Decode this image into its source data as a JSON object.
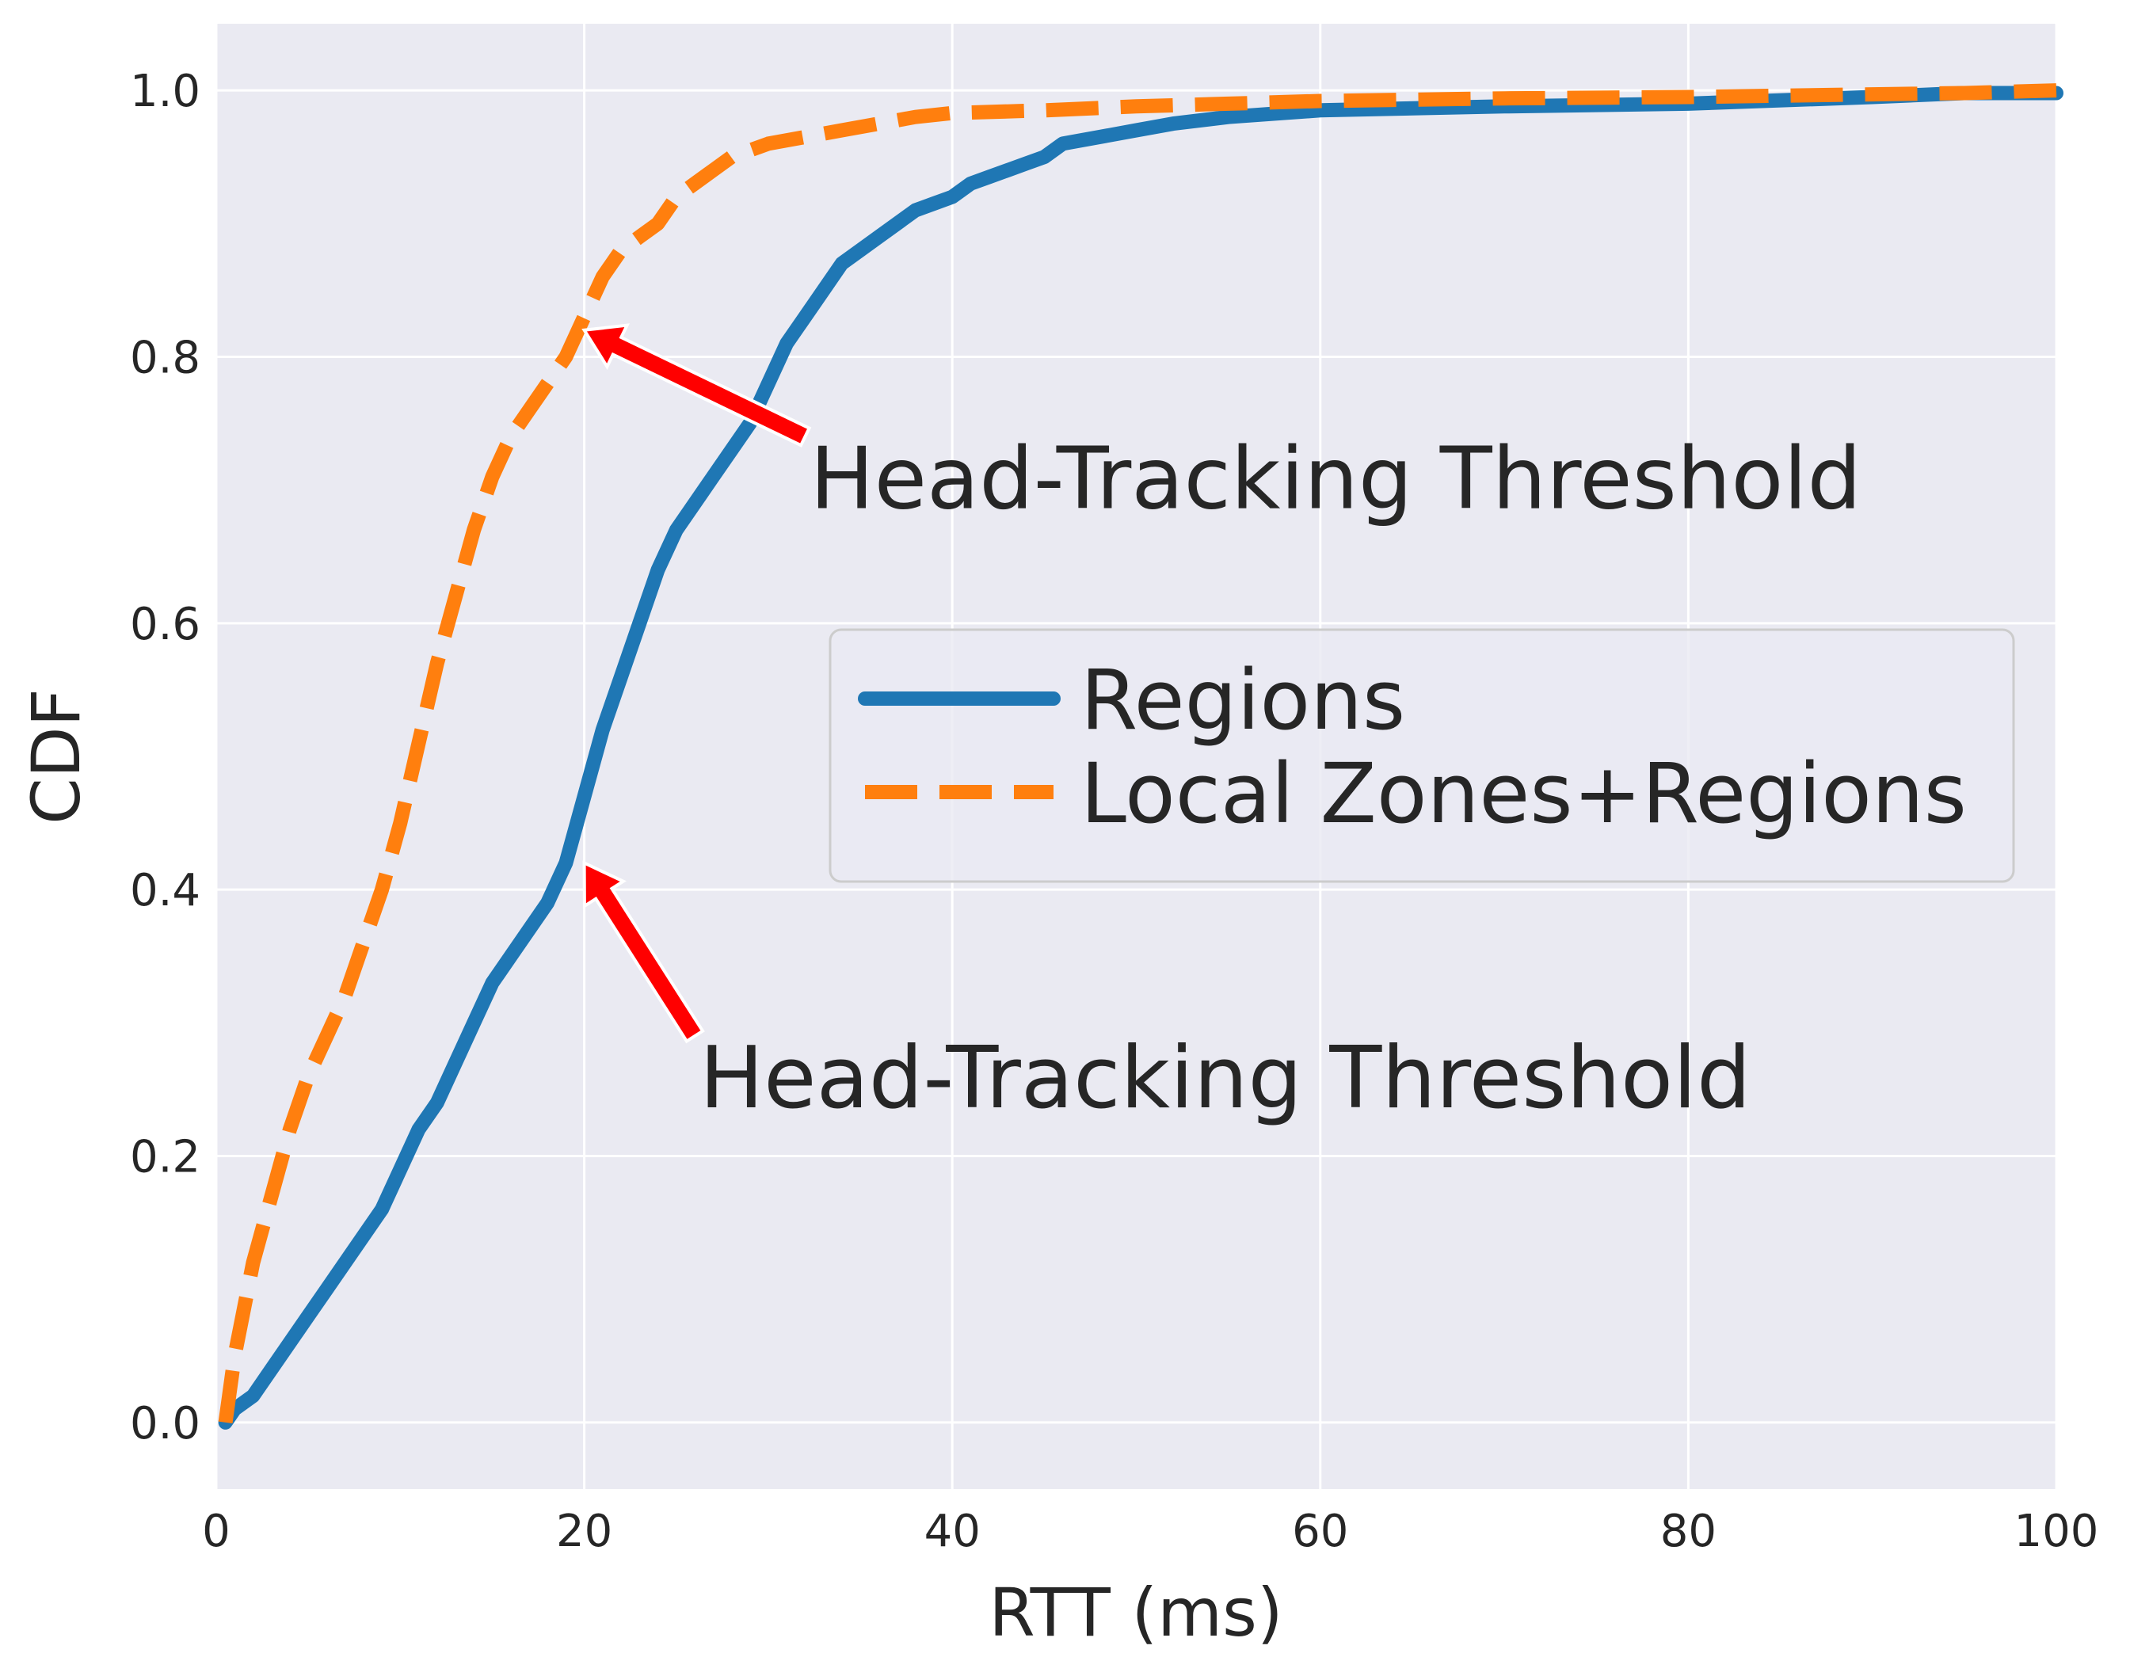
{
  "chart_data": {
    "type": "line",
    "xlabel": "RTT (ms)",
    "ylabel": "CDF",
    "xlim": [
      0,
      100
    ],
    "ylim": [
      -0.05,
      1.05
    ],
    "xticks": [
      "0",
      "20",
      "40",
      "60",
      "80",
      "100"
    ],
    "yticks": [
      "0.0",
      "0.2",
      "0.4",
      "0.6",
      "0.8",
      "1.0"
    ],
    "grid": true,
    "background": "#eaeaf2",
    "legend": {
      "placement": "center-right",
      "entries": [
        "Regions",
        "Local Zones+Regions"
      ]
    },
    "series": [
      {
        "name": "Regions",
        "style": "solid",
        "color": "#1f77b4",
        "x": [
          0.5,
          1,
          2,
          3,
          4,
          5,
          6,
          7,
          8,
          9,
          10,
          11,
          12,
          13,
          14,
          15,
          16,
          17,
          18,
          19,
          20,
          21,
          22,
          23,
          24,
          25,
          26,
          27,
          28,
          29,
          30,
          31,
          32,
          33,
          34,
          35,
          36,
          37,
          38,
          39,
          40,
          41,
          42,
          43,
          44,
          45,
          46,
          48,
          50,
          52,
          55,
          60,
          70,
          80,
          90,
          95,
          100
        ],
        "y": [
          0.0,
          0.01,
          0.02,
          0.04,
          0.06,
          0.08,
          0.1,
          0.12,
          0.14,
          0.16,
          0.19,
          0.22,
          0.24,
          0.27,
          0.3,
          0.33,
          0.35,
          0.37,
          0.39,
          0.42,
          0.47,
          0.52,
          0.56,
          0.6,
          0.64,
          0.67,
          0.69,
          0.71,
          0.73,
          0.75,
          0.78,
          0.81,
          0.83,
          0.85,
          0.87,
          0.88,
          0.89,
          0.9,
          0.91,
          0.915,
          0.92,
          0.93,
          0.935,
          0.94,
          0.945,
          0.95,
          0.96,
          0.965,
          0.97,
          0.975,
          0.98,
          0.985,
          0.988,
          0.99,
          0.995,
          0.998,
          0.998
        ]
      },
      {
        "name": "Local Zones+Regions",
        "style": "dashed",
        "color": "#ff7f0e",
        "x": [
          0.5,
          1,
          2,
          3,
          4,
          5,
          6,
          7,
          8,
          9,
          10,
          11,
          12,
          13,
          14,
          15,
          16,
          17,
          18,
          19,
          20,
          21,
          22,
          23,
          24,
          25,
          26,
          27,
          28,
          29,
          30,
          32,
          34,
          36,
          38,
          40,
          45,
          50,
          55,
          60,
          70,
          80,
          90,
          95,
          100
        ],
        "y": [
          0.0,
          0.05,
          0.12,
          0.17,
          0.22,
          0.26,
          0.29,
          0.32,
          0.36,
          0.4,
          0.45,
          0.51,
          0.57,
          0.62,
          0.67,
          0.71,
          0.74,
          0.76,
          0.78,
          0.8,
          0.83,
          0.86,
          0.88,
          0.89,
          0.9,
          0.92,
          0.93,
          0.94,
          0.95,
          0.955,
          0.96,
          0.965,
          0.97,
          0.975,
          0.98,
          0.983,
          0.985,
          0.988,
          0.99,
          0.992,
          0.994,
          0.995,
          0.997,
          0.998,
          1.0
        ]
      }
    ],
    "annotations": [
      {
        "text": "Head-Tracking Threshold",
        "arrow_to": [
          20,
          0.82
        ],
        "text_at": [
          32,
          0.74
        ]
      },
      {
        "text": "Head-Tracking Threshold",
        "arrow_to": [
          20,
          0.42
        ],
        "text_at": [
          26,
          0.29
        ]
      }
    ]
  }
}
